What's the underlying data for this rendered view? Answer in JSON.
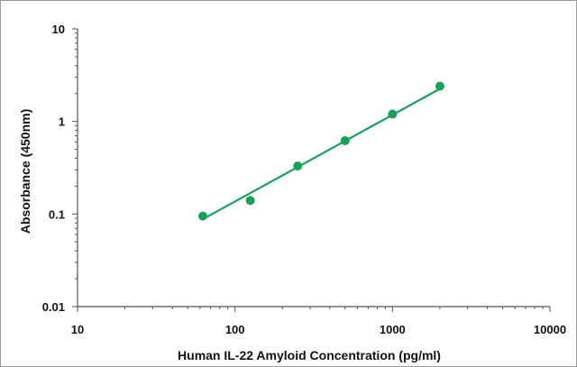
{
  "chart_data": {
    "type": "scatter",
    "title": "",
    "xlabel": "Human IL-22 Amyloid  Concentration (pg/ml)",
    "ylabel": "Absorbance (450nm)",
    "x_scale": "log",
    "y_scale": "log",
    "xlim": [
      10,
      10000
    ],
    "ylim": [
      0.01,
      10
    ],
    "x_ticks": [
      10,
      100,
      1000,
      10000
    ],
    "x_tick_labels": [
      "10",
      "100",
      "1000",
      "10000"
    ],
    "y_ticks": [
      0.01,
      0.1,
      1,
      10
    ],
    "y_tick_labels": [
      "0.01",
      "0.1",
      "1",
      "10"
    ],
    "grid": false,
    "legend": "none",
    "series": [
      {
        "x": [
          62.5,
          125,
          250,
          500,
          1000,
          2000
        ],
        "y": [
          0.095,
          0.14,
          0.33,
          0.62,
          1.2,
          2.4
        ],
        "color": "#1aa05a",
        "trendline": true,
        "trendline_x": [
          62.5,
          2000
        ],
        "trendline_y": [
          0.088,
          2.25
        ]
      }
    ],
    "colors": {
      "series": "#1aa05a",
      "axis": "#555555",
      "text": "#111111"
    }
  }
}
